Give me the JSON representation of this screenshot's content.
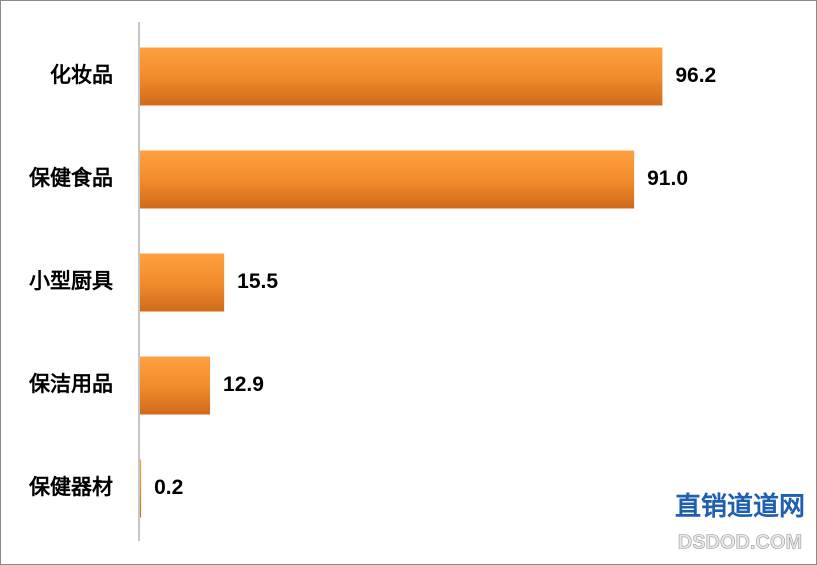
{
  "chart_data": {
    "type": "bar",
    "orientation": "horizontal",
    "categories": [
      "化妆品",
      "保健食品",
      "小型厨具",
      "保洁用品",
      "保健器材"
    ],
    "values": [
      96.2,
      91.0,
      15.5,
      12.9,
      0.2
    ],
    "value_labels": [
      "96.2",
      "91.0",
      "15.5",
      "12.9",
      "0.2"
    ],
    "color": "#f28c2c",
    "xlim": [
      0,
      100
    ]
  },
  "watermark": {
    "title": "直销道道网",
    "url": "DSDOD.COM"
  }
}
